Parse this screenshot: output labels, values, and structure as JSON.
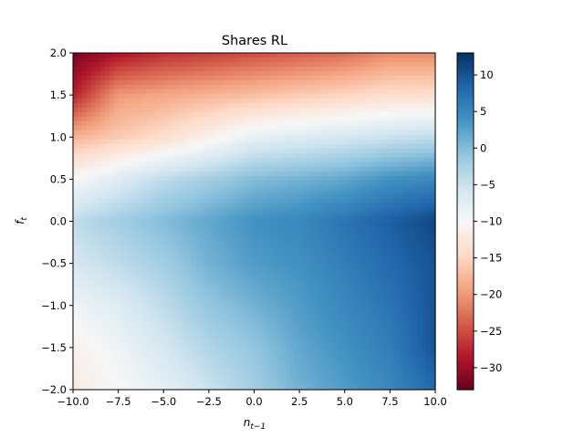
{
  "chart_data": {
    "type": "heatmap",
    "subtype": "filled contour",
    "title": "Shares RL",
    "xlabel_base": "n",
    "xlabel_sub": "t−1",
    "ylabel_base": "f",
    "ylabel_sub": "t",
    "xlim": [
      -10,
      10
    ],
    "ylim": [
      -2,
      2
    ],
    "xticks": [
      -10.0,
      -7.5,
      -5.0,
      -2.5,
      0.0,
      2.5,
      5.0,
      7.5,
      10.0
    ],
    "xtick_labels": [
      "−10.0",
      "−7.5",
      "−5.0",
      "−2.5",
      "0.0",
      "2.5",
      "5.0",
      "7.5",
      "10.0"
    ],
    "yticks": [
      2.0,
      1.5,
      1.0,
      0.5,
      0.0,
      -0.5,
      -1.0,
      -1.5,
      -2.0
    ],
    "ytick_labels": [
      "2.0",
      "1.5",
      "1.0",
      "0.5",
      "0.0",
      "−0.5",
      "−1.0",
      "−1.5",
      "−2.0"
    ],
    "colormap": "RdBu",
    "colorbar": {
      "range": [
        -33,
        13
      ],
      "ticks": [
        10,
        5,
        0,
        -5,
        -10,
        -15,
        -20,
        -25,
        -30
      ],
      "tick_labels": [
        "10",
        "5",
        "0",
        "−5",
        "−10",
        "−15",
        "−20",
        "−25",
        "−30"
      ]
    },
    "grid": false,
    "grid_x": [
      -10,
      -7.5,
      -5,
      -2.5,
      0,
      2.5,
      5,
      7.5,
      10
    ],
    "grid_y": [
      2.0,
      1.5,
      1.0,
      0.5,
      0.0,
      -0.5,
      -1.0,
      -1.5,
      -2.0
    ],
    "z": [
      [
        -32,
        -29,
        -27,
        -26,
        -25,
        -24,
        -23,
        -21,
        -21
      ],
      [
        -28,
        -20,
        -19,
        -18,
        -17,
        -16,
        -15,
        -14,
        -14
      ],
      [
        -18,
        -16,
        -14,
        -11,
        -8,
        -7,
        -6,
        -5,
        -4
      ],
      [
        -10,
        -7,
        -4,
        -2,
        0,
        1,
        2,
        4,
        5
      ],
      [
        -4,
        -2,
        0,
        2,
        4,
        5,
        7,
        9,
        11
      ],
      [
        -6,
        -4,
        -2,
        1,
        3,
        4,
        6,
        8,
        10
      ],
      [
        -9,
        -7,
        -4,
        -1,
        1,
        3,
        5,
        7,
        10
      ],
      [
        -11,
        -9,
        -6,
        -3,
        -1,
        2,
        4,
        6,
        10
      ],
      [
        -12,
        -10,
        -8,
        -5,
        -2,
        1,
        3,
        5,
        8
      ]
    ]
  }
}
